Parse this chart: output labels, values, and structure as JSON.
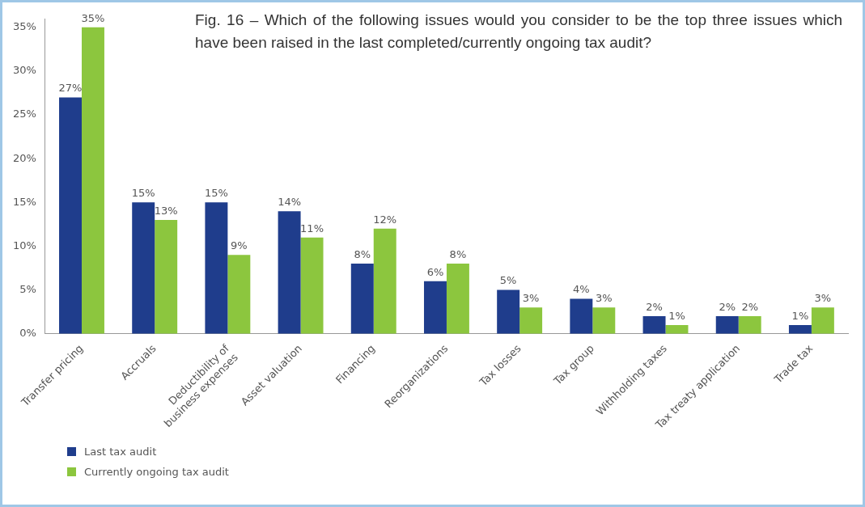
{
  "chart_data": {
    "type": "bar",
    "title": "Fig. 16 – Which of the following issues would you consider to be the top three issues which have been raised in the last completed/currently ongoing tax audit?",
    "categories": [
      "Transfer pricing",
      "Accruals",
      "Deductibility of business expenses",
      "Asset valuation",
      "Financing",
      "Reorganizations",
      "Tax losses",
      "Tax group",
      "Withholding taxes",
      "Tax treaty application",
      "Trade tax"
    ],
    "series": [
      {
        "name": "Last tax audit",
        "color": "#1f3d8c",
        "values": [
          27,
          15,
          15,
          14,
          8,
          6,
          5,
          4,
          2,
          2,
          1
        ],
        "value_labels": [
          "27%",
          "15%",
          "15%",
          "14%",
          "8%",
          "6%",
          "5%",
          "4%",
          "2%",
          "2%",
          "1%"
        ]
      },
      {
        "name": "Currently ongoing tax audit",
        "color": "#8cc63e",
        "values": [
          35,
          13,
          9,
          11,
          12,
          8,
          3,
          3,
          1,
          2,
          3
        ],
        "value_labels": [
          "35%",
          "13%",
          "9%",
          "11%",
          "12%",
          "8%",
          "3%",
          "3%",
          "1%",
          "2%",
          "3%"
        ]
      }
    ],
    "ylim": [
      0,
      36
    ],
    "yticks": [
      {
        "value": 0,
        "label": "0%"
      },
      {
        "value": 5,
        "label": "5%"
      },
      {
        "value": 10,
        "label": "10%"
      },
      {
        "value": 15,
        "label": "15%"
      },
      {
        "value": 20,
        "label": "20%"
      },
      {
        "value": 25,
        "label": "25%"
      },
      {
        "value": 30,
        "label": "30%"
      },
      {
        "value": 35,
        "label": "35%"
      }
    ],
    "grid": false,
    "legend": "bottom left"
  }
}
